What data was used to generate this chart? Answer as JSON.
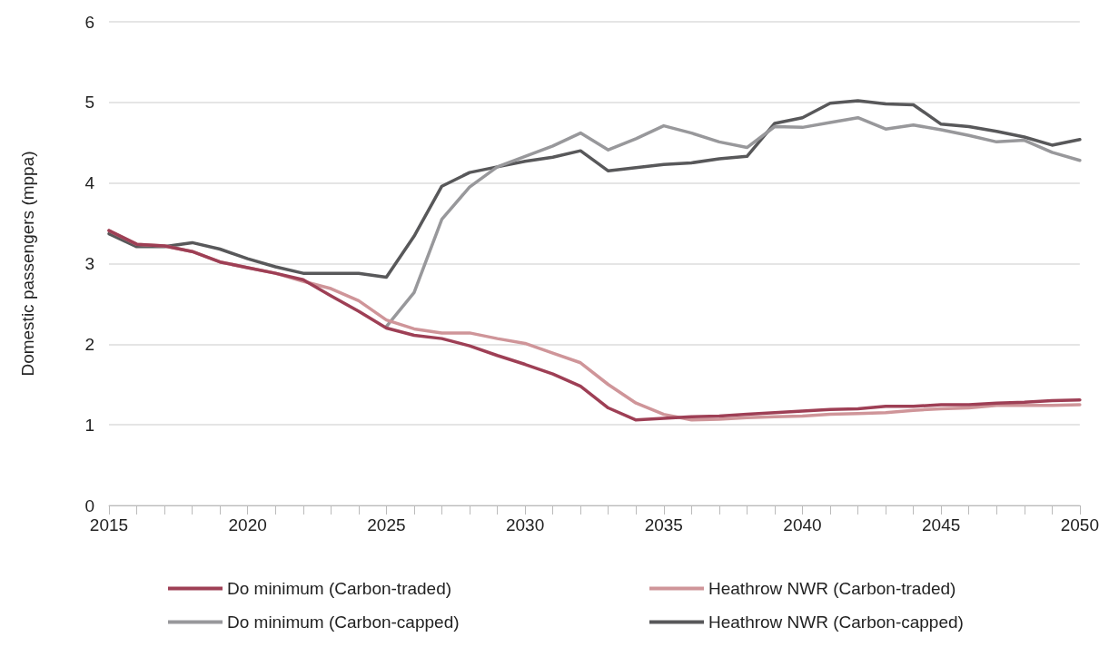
{
  "chart_data": {
    "type": "line",
    "ylabel": "Domestic passengers (mppa)",
    "x": [
      2015,
      2016,
      2017,
      2018,
      2019,
      2020,
      2021,
      2022,
      2023,
      2024,
      2025,
      2026,
      2027,
      2028,
      2029,
      2030,
      2031,
      2032,
      2033,
      2034,
      2035,
      2036,
      2037,
      2038,
      2039,
      2040,
      2041,
      2042,
      2043,
      2044,
      2045,
      2046,
      2047,
      2048,
      2049,
      2050
    ],
    "series": [
      {
        "name": "Do minimum (Carbon-traded)",
        "color": "#9e3f55",
        "values": [
          3.41,
          3.24,
          3.22,
          3.15,
          3.02,
          2.95,
          2.88,
          2.8,
          2.6,
          2.41,
          2.2,
          2.11,
          2.07,
          1.98,
          1.86,
          1.75,
          1.63,
          1.48,
          1.21,
          1.06,
          1.08,
          1.1,
          1.11,
          1.13,
          1.15,
          1.17,
          1.19,
          1.2,
          1.23,
          1.23,
          1.25,
          1.25,
          1.27,
          1.28,
          1.3,
          1.31
        ]
      },
      {
        "name": "Heathrow NWR (Carbon-traded)",
        "color": "#cf9599",
        "values": [
          3.41,
          3.24,
          3.22,
          3.15,
          3.02,
          2.95,
          2.88,
          2.78,
          2.69,
          2.54,
          2.3,
          2.19,
          2.14,
          2.14,
          2.07,
          2.01,
          1.89,
          1.77,
          1.5,
          1.27,
          1.13,
          1.06,
          1.07,
          1.09,
          1.1,
          1.11,
          1.13,
          1.14,
          1.15,
          1.18,
          1.2,
          1.21,
          1.24,
          1.24,
          1.24,
          1.25
        ]
      },
      {
        "name": "Do minimum (Carbon-capped)",
        "color": "#98989b",
        "values": [
          null,
          null,
          null,
          null,
          null,
          null,
          null,
          null,
          null,
          null,
          2.22,
          2.64,
          3.55,
          3.95,
          4.2,
          4.33,
          4.46,
          4.62,
          4.41,
          4.55,
          4.71,
          4.62,
          4.51,
          4.44,
          4.7,
          4.69,
          4.75,
          4.81,
          4.67,
          4.72,
          4.66,
          4.59,
          4.51,
          4.53,
          4.38,
          4.28
        ]
      },
      {
        "name": "Heathrow NWR (Carbon-capped)",
        "color": "#58585a",
        "values": [
          3.37,
          3.21,
          3.21,
          3.26,
          3.18,
          3.06,
          2.96,
          2.88,
          2.88,
          2.88,
          2.83,
          3.34,
          3.96,
          4.13,
          4.2,
          4.27,
          4.32,
          4.4,
          4.15,
          4.19,
          4.23,
          4.25,
          4.3,
          4.33,
          4.74,
          4.81,
          4.99,
          5.02,
          4.98,
          4.97,
          4.73,
          4.7,
          4.64,
          4.57,
          4.47,
          4.54
        ]
      }
    ],
    "xlim": [
      2015,
      2050
    ],
    "xticks": [
      2015,
      {
        "value": 2016,
        "label": null
      },
      {
        "value": 2017,
        "label": null
      },
      {
        "value": 2018,
        "label": null
      },
      {
        "value": 2019,
        "label": null
      },
      2020,
      {
        "value": 2021,
        "label": null
      },
      {
        "value": 2022,
        "label": null
      },
      {
        "value": 2023,
        "label": null
      },
      {
        "value": 2024,
        "label": null
      },
      2025,
      {
        "value": 2026,
        "label": null
      },
      {
        "value": 2027,
        "label": null
      },
      {
        "value": 2028,
        "label": null
      },
      {
        "value": 2029,
        "label": null
      },
      2030,
      {
        "value": 2031,
        "label": null
      },
      {
        "value": 2032,
        "label": null
      },
      {
        "value": 2033,
        "label": null
      },
      {
        "value": 2034,
        "label": null
      },
      2035,
      {
        "value": 2036,
        "label": null
      },
      {
        "value": 2037,
        "label": null
      },
      {
        "value": 2038,
        "label": null
      },
      {
        "value": 2039,
        "label": null
      },
      2040,
      {
        "value": 2041,
        "label": null
      },
      {
        "value": 2042,
        "label": null
      },
      {
        "value": 2043,
        "label": null
      },
      {
        "value": 2044,
        "label": null
      },
      2045,
      {
        "value": 2046,
        "label": null
      },
      {
        "value": 2047,
        "label": null
      },
      {
        "value": 2048,
        "label": null
      },
      {
        "value": 2049,
        "label": null
      },
      2050
    ],
    "ylim": [
      0,
      6
    ],
    "yticks": [
      0,
      1,
      2,
      3,
      4,
      5,
      6
    ],
    "grid": "y",
    "legend": "bottom",
    "marker": "none",
    "line_style": "solid"
  }
}
